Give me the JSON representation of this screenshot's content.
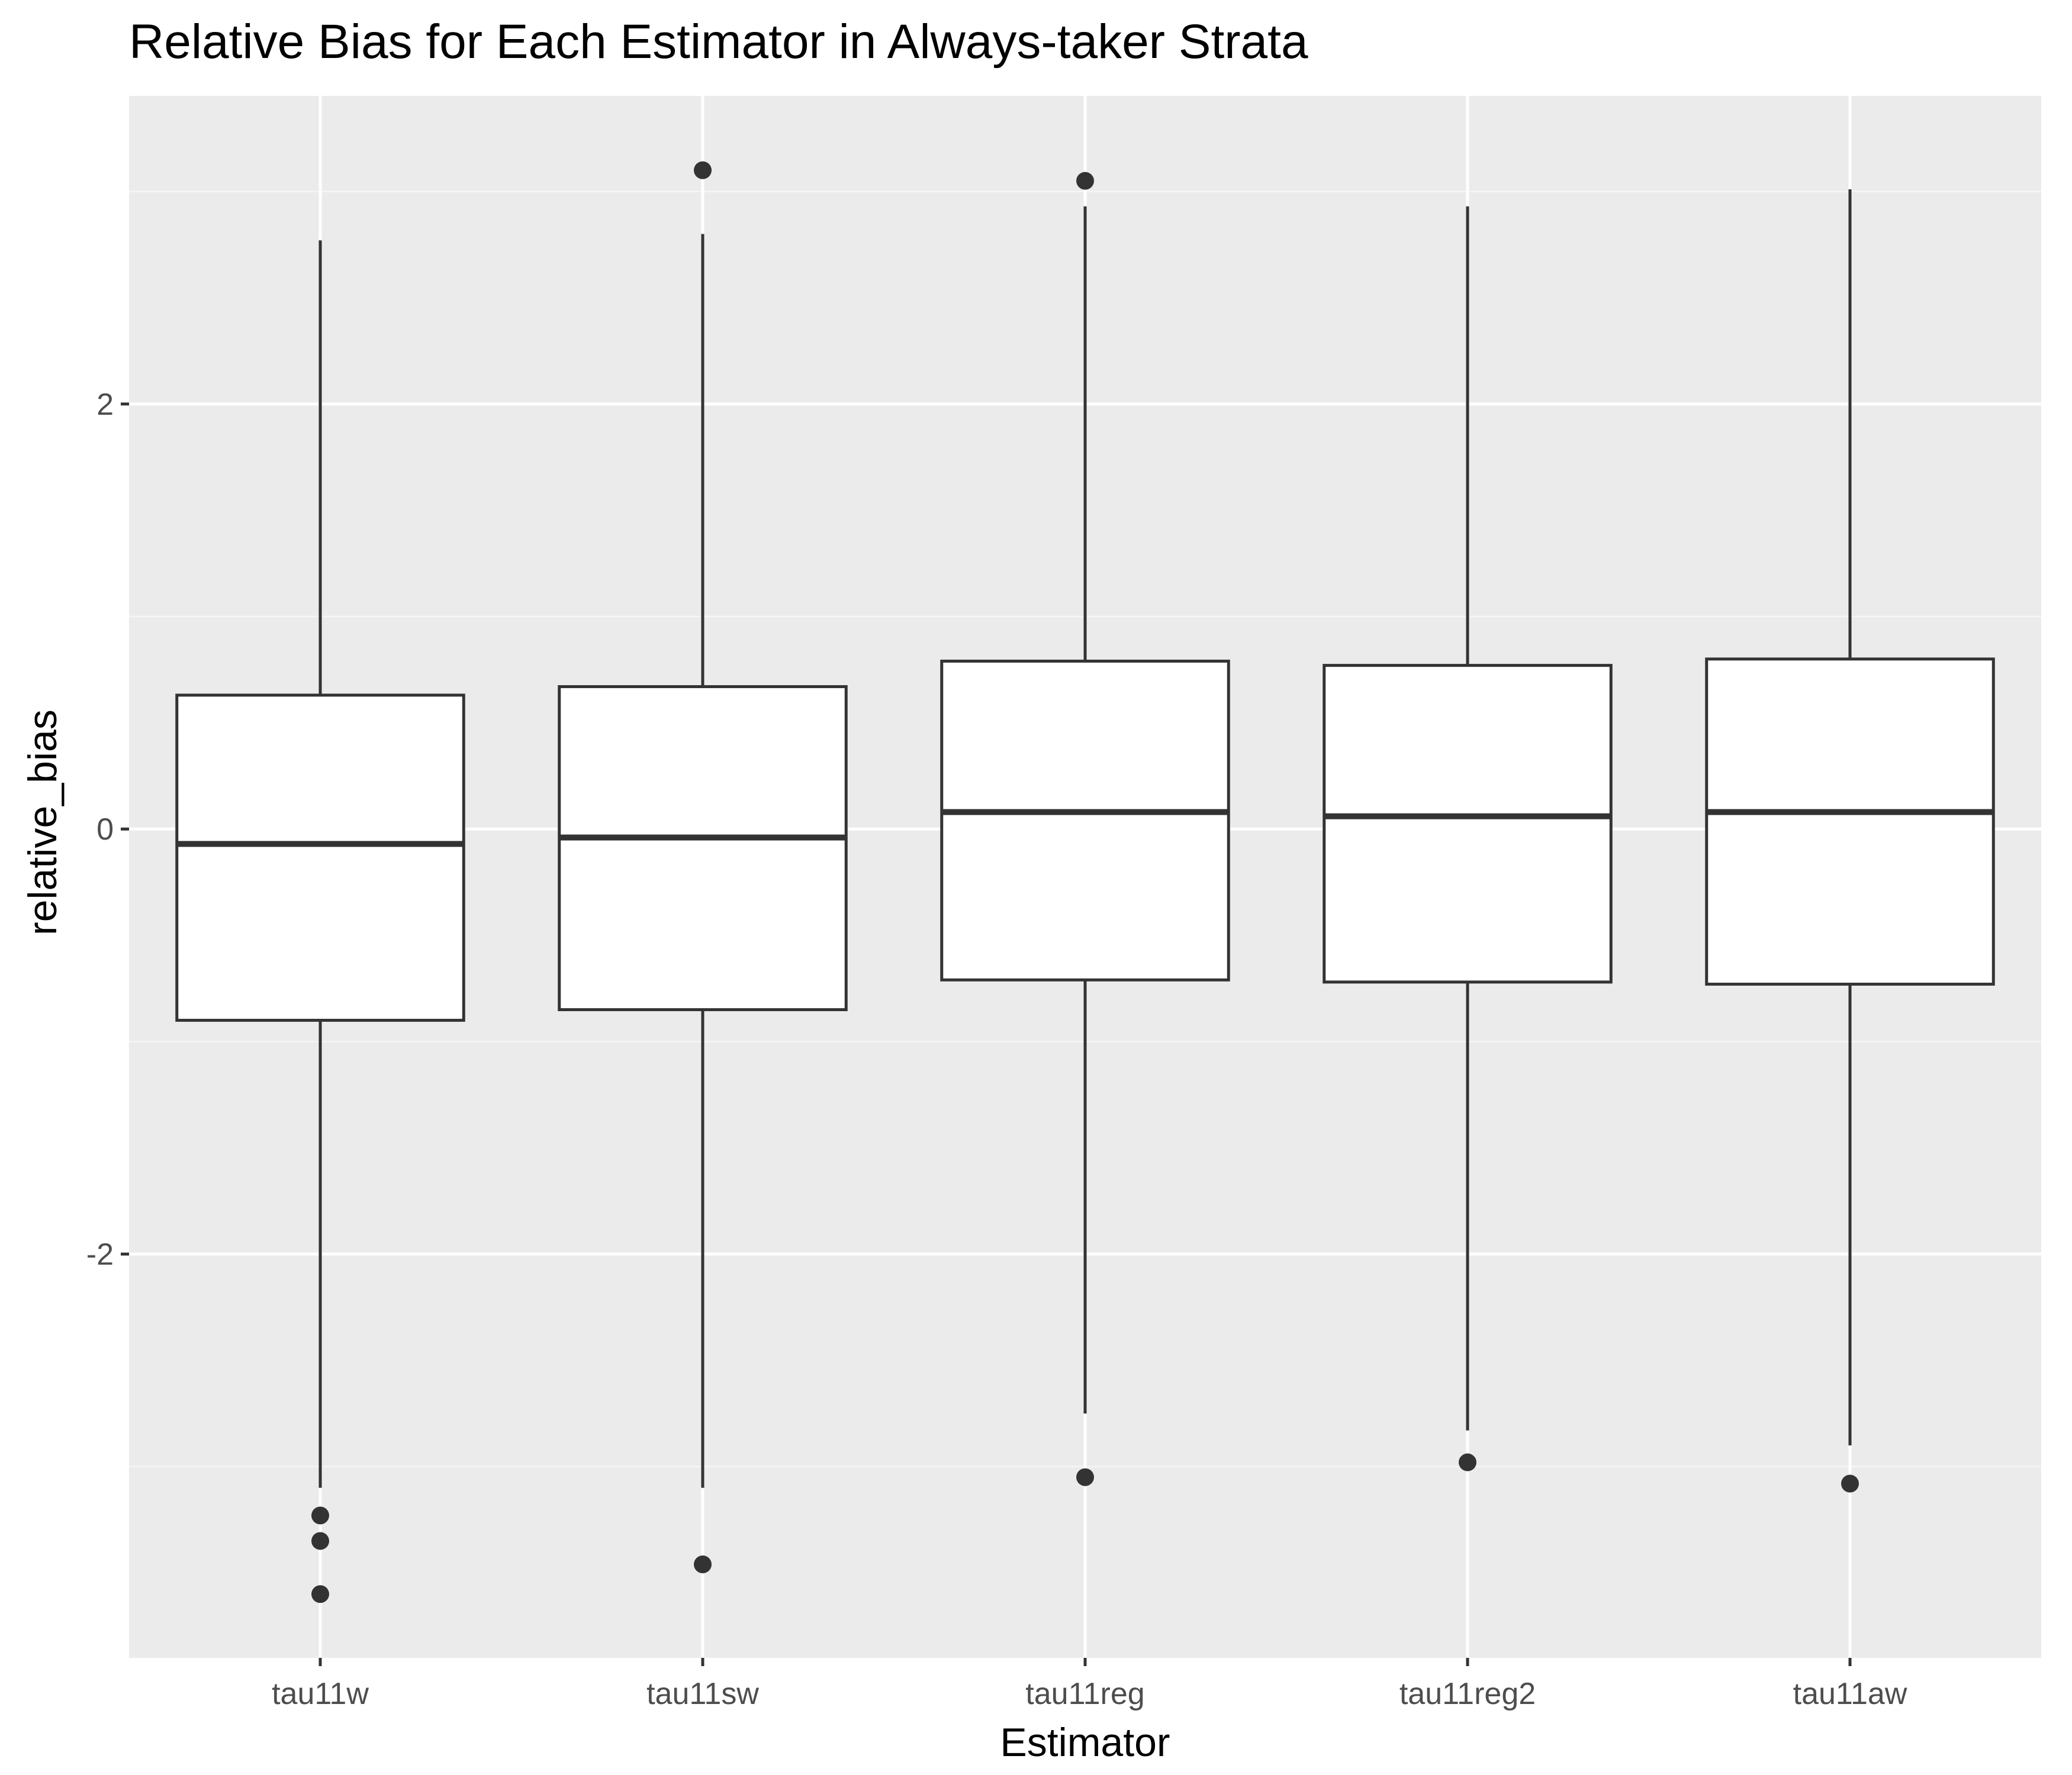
{
  "chart_data": {
    "type": "box",
    "title": "Relative Bias for Each Estimator in Always-taker Strata",
    "xlabel": "Estimator",
    "ylabel": "relative_bias",
    "ylim": [
      -3.9,
      3.45
    ],
    "yticks": [
      -2,
      0,
      2
    ],
    "ytick_labels": [
      "-2",
      "0",
      "2"
    ],
    "grid": true,
    "legend": "none",
    "categories": [
      "tau11w",
      "tau11sw",
      "tau11reg",
      "tau11reg2",
      "tau11aw"
    ],
    "boxes": [
      {
        "name": "tau11w",
        "whisker_low": -3.1,
        "q1": -0.9,
        "median": -0.07,
        "q3": 0.63,
        "whisker_high": 2.77,
        "outliers": [
          -3.23,
          -3.35,
          -3.6
        ]
      },
      {
        "name": "tau11sw",
        "whisker_low": -3.1,
        "q1": -0.85,
        "median": -0.04,
        "q3": 0.67,
        "whisker_high": 2.8,
        "outliers": [
          3.1,
          -3.46
        ]
      },
      {
        "name": "tau11reg",
        "whisker_low": -2.75,
        "q1": -0.71,
        "median": 0.08,
        "q3": 0.79,
        "whisker_high": 2.93,
        "outliers": [
          3.05,
          -3.05
        ]
      },
      {
        "name": "tau11reg2",
        "whisker_low": -2.83,
        "q1": -0.72,
        "median": 0.06,
        "q3": 0.77,
        "whisker_high": 2.93,
        "outliers": [
          -2.98
        ]
      },
      {
        "name": "tau11aw",
        "whisker_low": -2.9,
        "q1": -0.73,
        "median": 0.08,
        "q3": 0.8,
        "whisker_high": 3.01,
        "outliers": [
          -3.08
        ]
      }
    ]
  },
  "colors": {
    "panel": "#ebebeb",
    "grid_major": "#ffffff",
    "grid_minor": "#f5f5f5",
    "box_fill": "#ffffff",
    "box_stroke": "#333333",
    "tick": "#333333"
  }
}
